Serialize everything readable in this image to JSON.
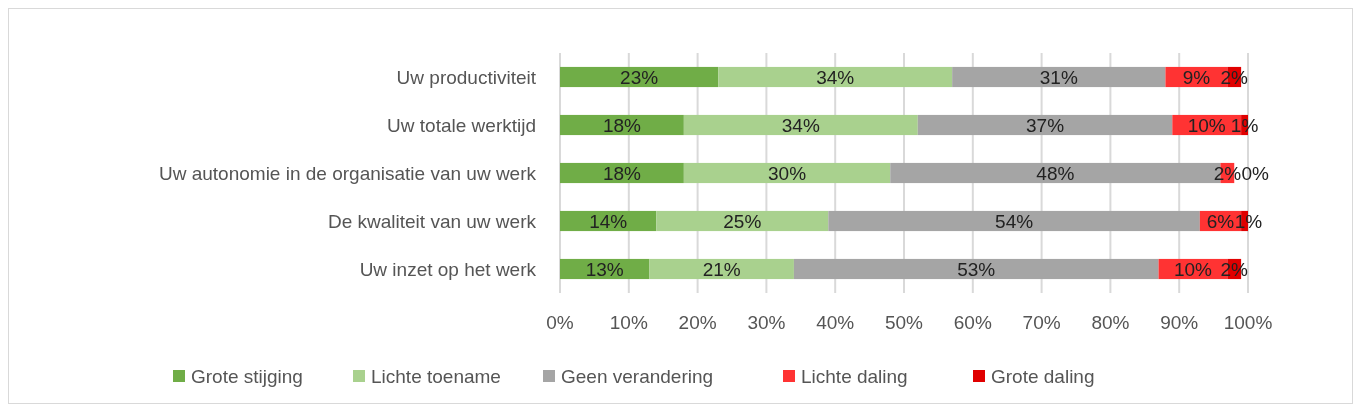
{
  "chart_data": {
    "type": "bar",
    "orientation": "horizontal",
    "stacked": true,
    "categories": [
      "Uw productiviteit",
      "Uw totale werktijd",
      "Uw autonomie in de organisatie van uw werk",
      "De kwaliteit van uw werk",
      "Uw inzet op het werk"
    ],
    "series": [
      {
        "name": "Grote stijging",
        "color": "#70ad47",
        "values": [
          23,
          18,
          18,
          14,
          13
        ],
        "value_labels": [
          "23%",
          "18%",
          "18%",
          "14%",
          "13%"
        ]
      },
      {
        "name": "Lichte toename",
        "color": "#a9d18e",
        "values": [
          34,
          34,
          30,
          25,
          21
        ],
        "value_labels": [
          "34%",
          "34%",
          "30%",
          "25%",
          "21%"
        ]
      },
      {
        "name": "Geen verandering",
        "color": "#a5a5a5",
        "values": [
          31,
          37,
          48,
          54,
          53
        ],
        "value_labels": [
          "31%",
          "37%",
          "48%",
          "54%",
          "53%"
        ]
      },
      {
        "name": "Lichte daling",
        "color": "#ff3333",
        "values": [
          9,
          10,
          2,
          6,
          10
        ],
        "value_labels": [
          "9%",
          "10%",
          "2%",
          "6%",
          "10%"
        ]
      },
      {
        "name": "Grote daling",
        "color": "#e00000",
        "values": [
          2,
          1,
          0,
          1,
          2
        ],
        "value_labels": [
          "2%",
          "1%",
          "0%",
          "1%",
          "2%"
        ]
      }
    ],
    "xlim": [
      0,
      100
    ],
    "xticks": [
      {
        "value": 0,
        "label": "0%"
      },
      {
        "value": 10,
        "label": "10%"
      },
      {
        "value": 20,
        "label": "20%"
      },
      {
        "value": 30,
        "label": "30%"
      },
      {
        "value": 40,
        "label": "40%"
      },
      {
        "value": 50,
        "label": "50%"
      },
      {
        "value": 60,
        "label": "60%"
      },
      {
        "value": 70,
        "label": "70%"
      },
      {
        "value": 80,
        "label": "80%"
      },
      {
        "value": 90,
        "label": "90%"
      },
      {
        "value": 100,
        "label": "100%"
      }
    ],
    "grid": "x",
    "legend": "bottom"
  }
}
